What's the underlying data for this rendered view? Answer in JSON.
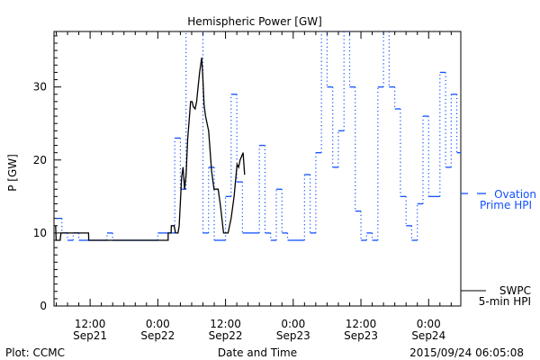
{
  "chart_data": {
    "type": "line",
    "title": "Hemispheric Power [GW]",
    "xlabel": "Date and Time",
    "ylabel": "P [GW]",
    "ylim": [
      0,
      37.6
    ],
    "xlim_hours_from_sep21_0000": [
      5.6,
      77.7
    ],
    "y_ticks": [
      0,
      10,
      20,
      30
    ],
    "x_ticks": [
      {
        "hour": 12,
        "time": "12:00",
        "date": "Sep21"
      },
      {
        "hour": 24,
        "time": "0:00",
        "date": "Sep22"
      },
      {
        "hour": 36,
        "time": "12:00",
        "date": "Sep22"
      },
      {
        "hour": 48,
        "time": "0:00",
        "date": "Sep23"
      },
      {
        "hour": 60,
        "time": "12:00",
        "date": "Sep23"
      },
      {
        "hour": 72,
        "time": "0:00",
        "date": "Sep24"
      }
    ],
    "series": [
      {
        "name": "Ovation Prime HPI",
        "label_line1": "Ovation",
        "label_line2": "Prime HPI",
        "color": "#1050ff",
        "style": "hourly-step-dotted",
        "start_hour": 6,
        "values": [
          12,
          10,
          9,
          10,
          9,
          9,
          9,
          9,
          9,
          10,
          9,
          9,
          9,
          9,
          9,
          9,
          9,
          9,
          10,
          10,
          10,
          23,
          16,
          42,
          42,
          42,
          10,
          19,
          9,
          9,
          15,
          29,
          17,
          10,
          10,
          10,
          22,
          10,
          9,
          16,
          10,
          9,
          9,
          9,
          18,
          10,
          21,
          42,
          30,
          19,
          24,
          42,
          30,
          13,
          9,
          10,
          9,
          30,
          42,
          30,
          27,
          15,
          11,
          9,
          14,
          26,
          15,
          15,
          32,
          19,
          29,
          21
        ]
      },
      {
        "name": "SWPC 5-min HPI",
        "label_line1": "SWPC",
        "label_line2": "5-min HPI",
        "color": "#000000",
        "style": "solid",
        "points": [
          [
            5.89,
            11
          ],
          [
            5.99,
            9
          ],
          [
            6.69,
            9
          ],
          [
            6.85,
            10
          ],
          [
            11.73,
            10
          ],
          [
            11.75,
            9
          ],
          [
            25.82,
            9
          ],
          [
            25.85,
            10
          ],
          [
            26.35,
            10
          ],
          [
            26.4,
            11
          ],
          [
            26.88,
            11
          ],
          [
            27.15,
            10
          ],
          [
            27.58,
            10
          ],
          [
            27.79,
            11
          ],
          [
            28.22,
            17.6
          ],
          [
            28.48,
            19
          ],
          [
            28.75,
            16
          ],
          [
            29.02,
            18
          ],
          [
            29.28,
            22.8
          ],
          [
            29.81,
            28
          ],
          [
            30.08,
            28
          ],
          [
            30.3,
            27.3
          ],
          [
            30.61,
            27
          ],
          [
            30.88,
            28
          ],
          [
            31.14,
            30
          ],
          [
            31.41,
            32
          ],
          [
            31.78,
            34
          ],
          [
            31.94,
            32
          ],
          [
            32.2,
            27.5
          ],
          [
            32.47,
            26
          ],
          [
            33.0,
            24
          ],
          [
            33.53,
            18.5
          ],
          [
            33.96,
            16
          ],
          [
            34.7,
            16
          ],
          [
            35.13,
            13.6
          ],
          [
            35.66,
            10
          ],
          [
            36.45,
            10
          ],
          [
            36.99,
            12
          ],
          [
            37.52,
            15
          ],
          [
            38.05,
            19.4
          ],
          [
            38.32,
            19
          ],
          [
            38.58,
            20
          ],
          [
            39.11,
            21
          ],
          [
            39.38,
            18
          ]
        ]
      }
    ],
    "footer_left": "Plot: CCMC",
    "footer_right": "2015/09/24 06:05:08"
  }
}
